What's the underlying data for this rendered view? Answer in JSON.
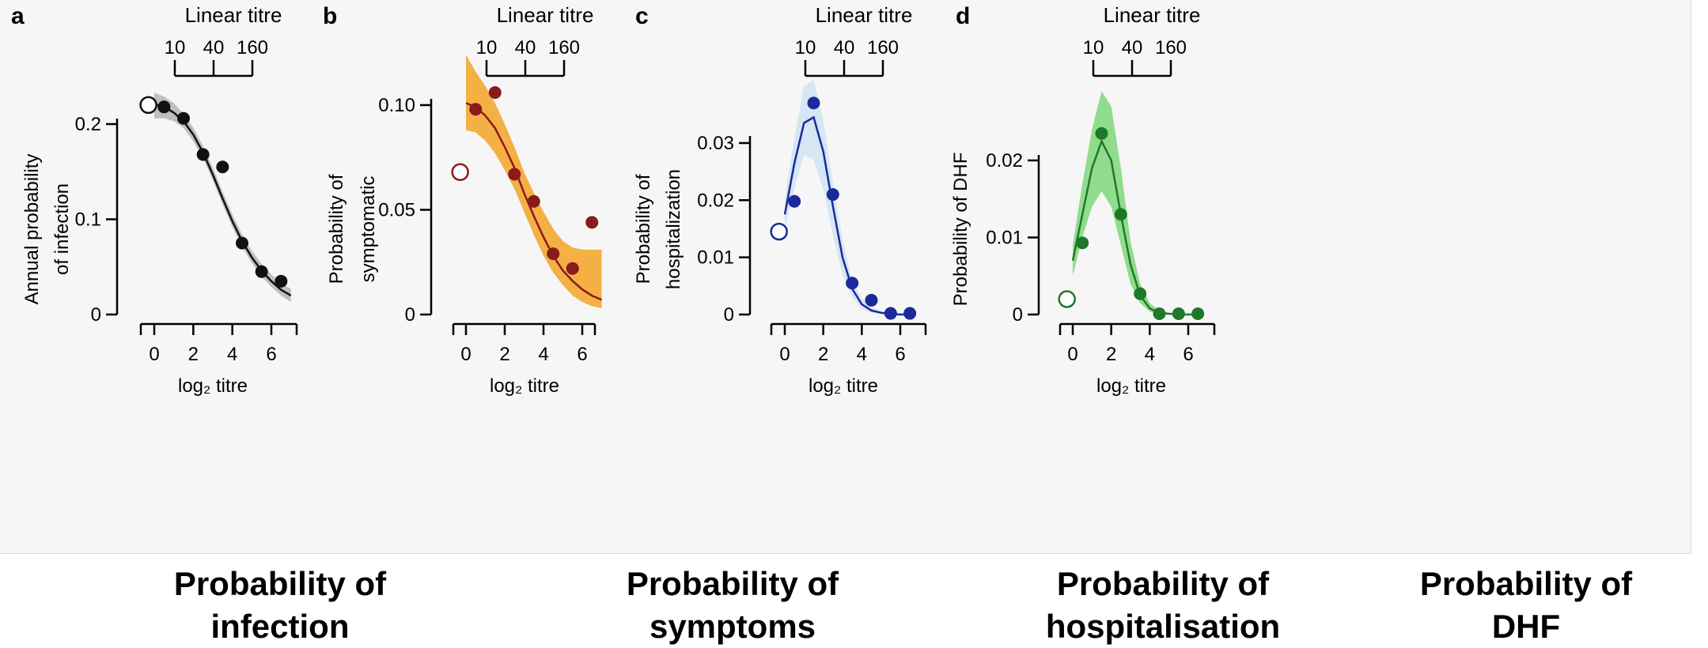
{
  "panels": [
    {
      "letter": "a",
      "caption_lines": [
        "Probability of",
        "infection"
      ],
      "chart_data": {
        "type": "line",
        "top_axis_title": "Linear titre",
        "top_axis_ticks": [
          10,
          40,
          160
        ],
        "xlabel": "log₂ titre",
        "ylabel_lines": [
          "Annual probability",
          "of infection"
        ],
        "x_ticks": [
          0,
          2,
          4,
          6
        ],
        "xlim": [
          -0.5,
          7
        ],
        "ylim": [
          0,
          0.23
        ],
        "y_ticks": [
          0,
          0.1,
          0.2
        ],
        "y_tick_labels": [
          "0",
          "0.1",
          "0.2"
        ],
        "color": "#111111",
        "band_color": "#b5b5b5",
        "open_point": {
          "x": -0.3,
          "y": 0.22
        },
        "points": [
          {
            "x": 0.5,
            "y": 0.218
          },
          {
            "x": 1.5,
            "y": 0.206
          },
          {
            "x": 2.5,
            "y": 0.168
          },
          {
            "x": 3.5,
            "y": 0.155
          },
          {
            "x": 4.5,
            "y": 0.075
          },
          {
            "x": 5.5,
            "y": 0.045
          },
          {
            "x": 6.5,
            "y": 0.035
          }
        ],
        "curve": {
          "x": [
            0,
            0.5,
            1,
            1.5,
            2,
            2.5,
            3,
            3.5,
            4,
            4.5,
            5,
            5.5,
            6,
            6.5,
            7
          ],
          "y": [
            0.221,
            0.218,
            0.212,
            0.203,
            0.189,
            0.17,
            0.147,
            0.122,
            0.098,
            0.077,
            0.06,
            0.046,
            0.035,
            0.026,
            0.02
          ]
        },
        "band": {
          "lower": [
            0.206,
            0.206,
            0.203,
            0.196,
            0.182,
            0.164,
            0.141,
            0.116,
            0.092,
            0.071,
            0.054,
            0.04,
            0.029,
            0.02,
            0.013
          ],
          "upper": [
            0.233,
            0.229,
            0.222,
            0.211,
            0.196,
            0.177,
            0.154,
            0.129,
            0.105,
            0.084,
            0.067,
            0.053,
            0.042,
            0.033,
            0.027
          ]
        }
      }
    },
    {
      "letter": "b",
      "caption_lines": [
        "Probability of",
        "symptoms"
      ],
      "chart_data": {
        "type": "line",
        "top_axis_title": "Linear titre",
        "top_axis_ticks": [
          10,
          40,
          160
        ],
        "xlabel": "log₂ titre",
        "ylabel_lines": [
          "Probability of",
          "symptomatic"
        ],
        "x_ticks": [
          0,
          2,
          4,
          6
        ],
        "xlim": [
          -0.5,
          7
        ],
        "ylim": [
          0,
          0.105
        ],
        "y_ticks": [
          0,
          0.05,
          0.1
        ],
        "y_tick_labels": [
          "0",
          "0.05",
          "0.10"
        ],
        "color": "#8b1a1a",
        "band_color": "#f3a326",
        "open_point": {
          "x": -0.3,
          "y": 0.068
        },
        "points": [
          {
            "x": 0.5,
            "y": 0.098
          },
          {
            "x": 1.5,
            "y": 0.106
          },
          {
            "x": 2.5,
            "y": 0.067
          },
          {
            "x": 3.5,
            "y": 0.054
          },
          {
            "x": 4.5,
            "y": 0.029
          },
          {
            "x": 5.5,
            "y": 0.022
          },
          {
            "x": 6.5,
            "y": 0.044
          }
        ],
        "curve": {
          "x": [
            0,
            0.5,
            1,
            1.5,
            2,
            2.5,
            3,
            3.5,
            4,
            4.5,
            5,
            5.5,
            6,
            6.5,
            7
          ],
          "y": [
            0.101,
            0.099,
            0.095,
            0.089,
            0.08,
            0.07,
            0.058,
            0.047,
            0.037,
            0.028,
            0.021,
            0.016,
            0.012,
            0.009,
            0.007
          ]
        },
        "band": {
          "lower": [
            0.088,
            0.087,
            0.083,
            0.077,
            0.069,
            0.06,
            0.049,
            0.038,
            0.028,
            0.02,
            0.014,
            0.009,
            0.006,
            0.004,
            0.003
          ],
          "upper": [
            0.124,
            0.116,
            0.109,
            0.101,
            0.091,
            0.08,
            0.068,
            0.058,
            0.049,
            0.041,
            0.035,
            0.032,
            0.031,
            0.031,
            0.031
          ]
        }
      }
    },
    {
      "letter": "c",
      "caption_lines": [
        "Probability of",
        "hospitalisation"
      ],
      "chart_data": {
        "type": "line",
        "top_axis_title": "Linear titre",
        "top_axis_ticks": [
          10,
          40,
          160
        ],
        "xlabel": "log₂ titre",
        "ylabel_lines": [
          "Probability of",
          "hospitalization"
        ],
        "x_ticks": [
          0,
          2,
          4,
          6
        ],
        "xlim": [
          -0.5,
          7
        ],
        "ylim": [
          0,
          0.032
        ],
        "y_ticks": [
          0,
          0.01,
          0.02,
          0.03
        ],
        "y_tick_labels": [
          "0",
          "0.01",
          "0.02",
          "0.03"
        ],
        "color": "#1a2a9c",
        "band_color": "#cfe3f3",
        "open_point": {
          "x": -0.3,
          "y": 0.0145
        },
        "points": [
          {
            "x": 0.5,
            "y": 0.0198
          },
          {
            "x": 1.5,
            "y": 0.037
          },
          {
            "x": 2.5,
            "y": 0.021
          },
          {
            "x": 3.5,
            "y": 0.0055
          },
          {
            "x": 4.5,
            "y": 0.0025
          },
          {
            "x": 5.5,
            "y": 0.0002
          },
          {
            "x": 6.5,
            "y": 0.0002
          }
        ],
        "curve": {
          "x": [
            0,
            0.5,
            1,
            1.5,
            2,
            2.5,
            3,
            3.5,
            4,
            4.5,
            5,
            5.5,
            6,
            6.5
          ],
          "y": [
            0.0175,
            0.0265,
            0.0335,
            0.0345,
            0.0285,
            0.019,
            0.01,
            0.0045,
            0.0018,
            0.0007,
            0.0003,
            0.0001,
            0.0,
            0.0
          ]
        },
        "band": {
          "lower": [
            0.015,
            0.022,
            0.028,
            0.027,
            0.022,
            0.014,
            0.007,
            0.003,
            0.001,
            0.0003,
            0.0001,
            0.0,
            0.0,
            0.0
          ],
          "upper": [
            0.02,
            0.031,
            0.04,
            0.041,
            0.034,
            0.023,
            0.013,
            0.006,
            0.0028,
            0.0013,
            0.0006,
            0.0003,
            0.0001,
            0.0
          ]
        }
      }
    },
    {
      "letter": "d",
      "caption_lines": [
        "Probability of",
        "DHF"
      ],
      "chart_data": {
        "type": "line",
        "top_axis_title": "Linear titre",
        "top_axis_ticks": [
          10,
          40,
          160
        ],
        "xlabel": "log₂ titre",
        "ylabel_lines": [
          "Probability of DHF"
        ],
        "x_ticks": [
          0,
          2,
          4,
          6
        ],
        "xlim": [
          -0.5,
          7
        ],
        "ylim": [
          0,
          0.021
        ],
        "y_ticks": [
          0,
          0.01,
          0.02
        ],
        "y_tick_labels": [
          "0",
          "0.01",
          "0.02"
        ],
        "color": "#1e7a2a",
        "band_color": "#7fd67a",
        "open_point": {
          "x": -0.3,
          "y": 0.002
        },
        "points": [
          {
            "x": 0.5,
            "y": 0.0093
          },
          {
            "x": 1.5,
            "y": 0.0235
          },
          {
            "x": 2.5,
            "y": 0.013
          },
          {
            "x": 3.5,
            "y": 0.0027
          },
          {
            "x": 4.5,
            "y": 0.0001
          },
          {
            "x": 5.5,
            "y": 0.0001
          },
          {
            "x": 6.5,
            "y": 0.0001
          }
        ],
        "curve": {
          "x": [
            0,
            0.5,
            1,
            1.5,
            2,
            2.5,
            3,
            3.5,
            4,
            4.5,
            5,
            5.5,
            6,
            6.5
          ],
          "y": [
            0.007,
            0.013,
            0.019,
            0.0225,
            0.02,
            0.013,
            0.0065,
            0.0025,
            0.0008,
            0.0002,
            0.0001,
            0.0,
            0.0,
            0.0
          ]
        },
        "band": {
          "lower": [
            0.005,
            0.01,
            0.014,
            0.016,
            0.014,
            0.009,
            0.004,
            0.0015,
            0.0004,
            0.0001,
            0.0,
            0.0,
            0.0,
            0.0
          ],
          "upper": [
            0.009,
            0.017,
            0.024,
            0.029,
            0.027,
            0.019,
            0.0095,
            0.004,
            0.0015,
            0.0005,
            0.0002,
            0.0001,
            0.0,
            0.0
          ]
        }
      }
    }
  ]
}
